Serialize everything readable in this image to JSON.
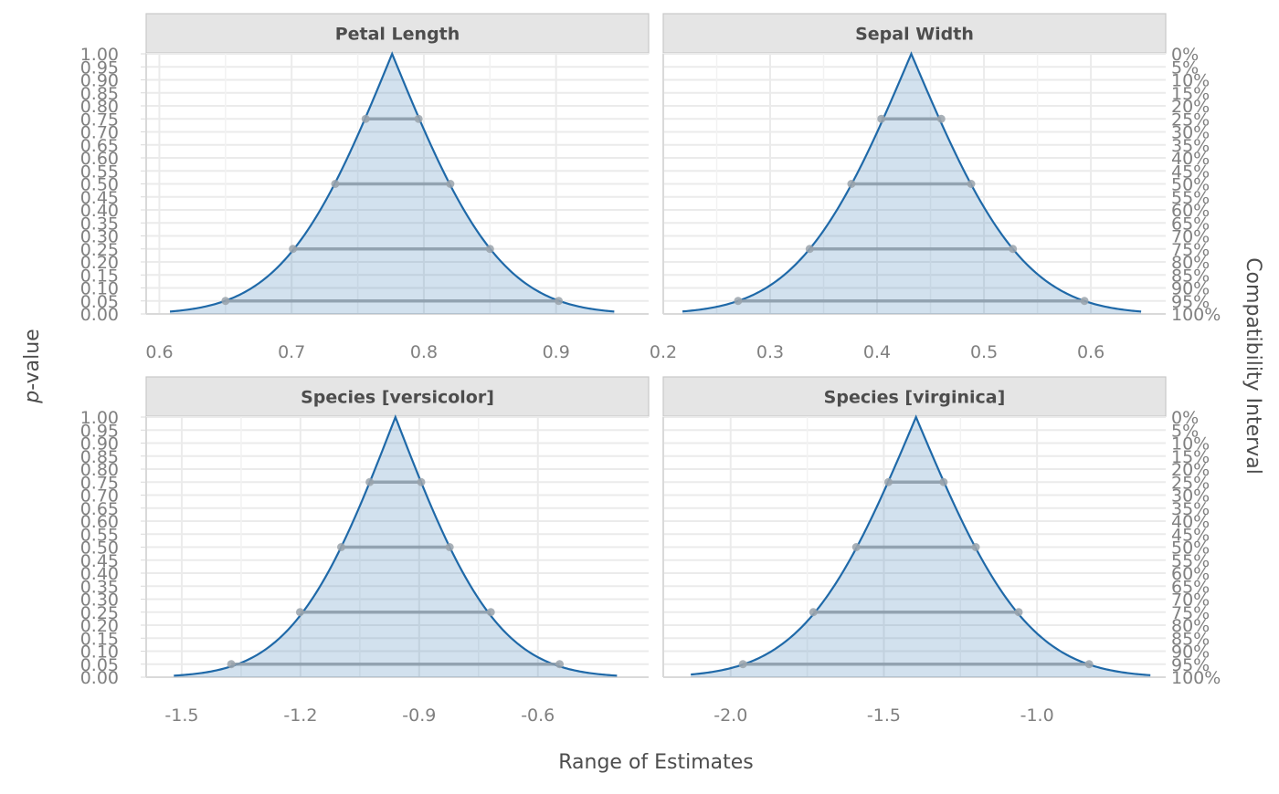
{
  "chart_data": {
    "type": "area",
    "xlabel": "Range of Estimates",
    "ylabel_italic": "p",
    "ylabel_rest": "-value",
    "ylabel_right": "Compatibility Interval",
    "y_ticks": [
      "0.00",
      "0.05",
      "0.10",
      "0.15",
      "0.20",
      "0.25",
      "0.30",
      "0.35",
      "0.40",
      "0.45",
      "0.50",
      "0.55",
      "0.60",
      "0.65",
      "0.70",
      "0.75",
      "0.80",
      "0.85",
      "0.90",
      "0.95",
      "1.00"
    ],
    "y_ticks_right": [
      "100%",
      "95%",
      "90%",
      "85%",
      "80%",
      "75%",
      "70%",
      "65%",
      "60%",
      "55%",
      "50%",
      "45%",
      "40%",
      "35%",
      "30%",
      "25%",
      "20%",
      "15%",
      "10%",
      "5%",
      "0%"
    ],
    "colors": {
      "curve": "#1f69a8",
      "fill": "#1f69a8",
      "interval": "#8a9aa8",
      "strip_bg": "#e5e5e5",
      "grid": "#ebebeb"
    },
    "panels": [
      {
        "title": "Petal Length",
        "estimate": 0.776,
        "se": 0.0645,
        "xlim": [
          0.59,
          0.97
        ],
        "x_ticks": [
          0.6,
          0.7,
          0.8,
          0.9
        ],
        "x_tick_labels": [
          "0.6",
          "0.7",
          "0.8",
          "0.9"
        ],
        "curve_range": [
          0.608,
          0.944
        ],
        "intervals": [
          {
            "level": 0.25,
            "lower": 0.756,
            "upper": 0.796
          },
          {
            "level": 0.5,
            "lower": 0.733,
            "upper": 0.82
          },
          {
            "level": 0.75,
            "lower": 0.701,
            "upper": 0.85
          },
          {
            "level": 0.95,
            "lower": 0.65,
            "upper": 0.902
          }
        ]
      },
      {
        "title": "Sepal Width",
        "estimate": 0.432,
        "se": 0.0826,
        "xlim": [
          0.2,
          0.67
        ],
        "x_ticks": [
          0.2,
          0.3,
          0.4,
          0.5,
          0.6
        ],
        "x_tick_labels": [
          "0.2",
          "0.3",
          "0.4",
          "0.5",
          "0.6"
        ],
        "curve_range": [
          0.218,
          0.647
        ],
        "intervals": [
          {
            "level": 0.25,
            "lower": 0.404,
            "upper": 0.46
          },
          {
            "level": 0.5,
            "lower": 0.376,
            "upper": 0.488
          },
          {
            "level": 0.75,
            "lower": 0.337,
            "upper": 0.527
          },
          {
            "level": 0.95,
            "lower": 0.27,
            "upper": 0.594
          }
        ]
      },
      {
        "title": "Species [versicolor]",
        "estimate": -0.96,
        "se": 0.2035,
        "xlim": [
          -1.59,
          -0.32
        ],
        "x_ticks": [
          -1.5,
          -1.2,
          -0.9,
          -0.6
        ],
        "x_tick_labels": [
          "-1.5",
          "-1.2",
          "-0.9",
          "-0.6"
        ],
        "curve_range": [
          -1.52,
          -0.4
        ],
        "intervals": [
          {
            "level": 0.25,
            "lower": -1.025,
            "upper": -0.895
          },
          {
            "level": 0.5,
            "lower": -1.097,
            "upper": -0.823
          },
          {
            "level": 0.75,
            "lower": -1.201,
            "upper": -0.719
          },
          {
            "level": 0.95,
            "lower": -1.375,
            "upper": -0.545
          }
        ]
      },
      {
        "title": "Species [virginica]",
        "estimate": -1.395,
        "se": 0.2865,
        "xlim": [
          -2.22,
          -0.58
        ],
        "x_ticks": [
          -2.0,
          -1.5,
          -1.0
        ],
        "x_tick_labels": [
          "-2.0",
          "-1.5",
          "-1.0"
        ],
        "curve_range": [
          -2.13,
          -0.63
        ],
        "intervals": [
          {
            "level": 0.25,
            "lower": -1.485,
            "upper": -1.305
          },
          {
            "level": 0.5,
            "lower": -1.59,
            "upper": -1.2
          },
          {
            "level": 0.75,
            "lower": -1.73,
            "upper": -1.06
          },
          {
            "level": 0.95,
            "lower": -1.96,
            "upper": -0.83
          }
        ]
      }
    ]
  }
}
